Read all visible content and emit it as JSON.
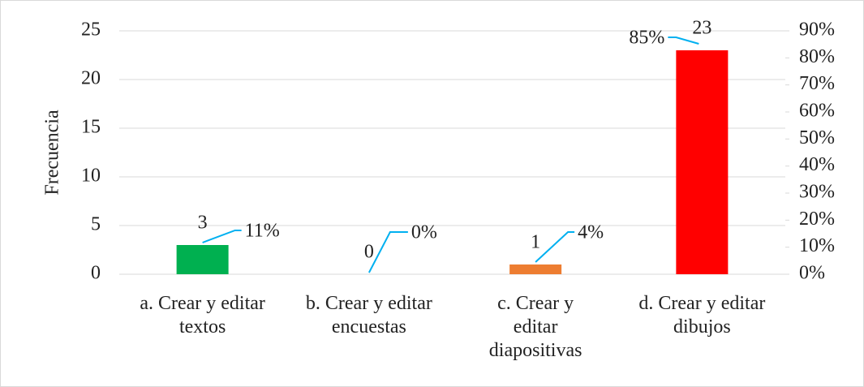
{
  "chart_data": {
    "type": "bar",
    "y_label": "Frecuencia",
    "categories": [
      "a. Crear y editar textos",
      "b. Crear y editar encuestas",
      "c. Crear y editar diapositivas",
      "d. Crear y editar dibujos"
    ],
    "series": [
      {
        "values": [
          3,
          0,
          1,
          23
        ],
        "colors": [
          "#00b050",
          "#a5a5a5",
          "#ed7d31",
          "#ff0000"
        ]
      },
      {
        "axis": "y2",
        "values": [
          11,
          0,
          4,
          85
        ],
        "value_labels": [
          "11%",
          "0%",
          "4%",
          "85%"
        ],
        "color": "#00b0f0"
      }
    ],
    "ylim": [
      0,
      25
    ],
    "yticks": [
      0,
      5,
      10,
      15,
      20,
      25
    ],
    "y2lim": [
      0,
      90
    ],
    "y2ticks": [
      {
        "value": 0,
        "label": "0%"
      },
      {
        "value": 10,
        "label": "10%"
      },
      {
        "value": 20,
        "label": "20%"
      },
      {
        "value": 30,
        "label": "30%"
      },
      {
        "value": 40,
        "label": "40%"
      },
      {
        "value": 50,
        "label": "50%"
      },
      {
        "value": 60,
        "label": "60%"
      },
      {
        "value": 70,
        "label": "70%"
      },
      {
        "value": 80,
        "label": "80%"
      },
      {
        "value": 90,
        "label": "90%"
      }
    ],
    "grid": true
  }
}
